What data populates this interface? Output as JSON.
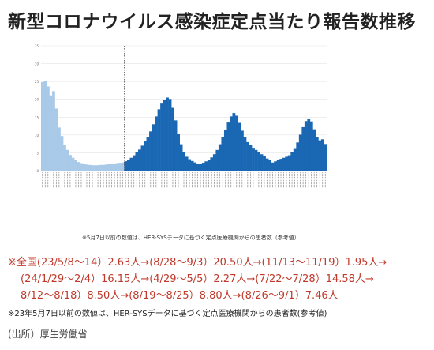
{
  "page": {
    "title": "新型コロナウイルス感染症定点当たり報告数推移",
    "chart_note": "※5月7日以前の数値は、HER-SYSデータに基づく定点医療機関からの患者数（参考値）",
    "summary_lines": [
      "※全国(23/5/8～14）2.63人→(8/28～9/3）20.50人→(11/13～11/19）1.95人→",
      "(24/1/29～2/4）16.15人→(4/29～5/5）2.27人→(7/22～7/28）14.58人→",
      "8/12～8/18）8.50人→(8/19～8/25）8.80人→(8/26～9/1）7.46人"
    ],
    "footnote": "※23年5月7日以前の数値は、HER-SYSデータに基づく定点医療機関からの患者数(参考値)",
    "source": "(出所）厚生労働省"
  },
  "colors": {
    "reference_bars": "#a9c9e8",
    "fixed_point_bars": "#1a67b3",
    "summary_text": "#c0392b",
    "divider": "#555555"
  },
  "chart_data": {
    "type": "bar",
    "title": "",
    "xlabel": "",
    "ylabel": "",
    "ylim": [
      0,
      35
    ],
    "yticks": [
      0,
      5,
      10,
      15,
      20,
      25,
      30,
      35
    ],
    "grid": true,
    "divider_after_index": 29,
    "series": [
      {
        "values": [
          24.8,
          25.2,
          23.6,
          21.1,
          22.3,
          17.4,
          12.1,
          9.7,
          7.3,
          5.8,
          4.4,
          3.6,
          2.9,
          2.4,
          2.1,
          1.9,
          1.7,
          1.6,
          1.5,
          1.5,
          1.5,
          1.6,
          1.6,
          1.7,
          1.8,
          1.9,
          2.0,
          2.1,
          2.2,
          2.3
        ]
      },
      {
        "values": [
          2.63,
          3.1,
          3.6,
          4.3,
          5.1,
          5.9,
          7.0,
          8.2,
          9.5,
          11.0,
          13.0,
          15.2,
          17.2,
          18.8,
          19.9,
          20.5,
          20.1,
          17.6,
          14.1,
          10.3,
          7.4,
          5.2,
          3.9,
          3.2,
          2.7,
          2.3,
          2.0,
          1.95,
          2.2,
          2.6,
          3.0,
          3.7,
          4.6,
          5.8,
          7.4,
          9.3,
          11.3,
          13.5,
          15.2,
          16.15,
          15.4,
          13.4,
          11.2,
          9.4,
          8.0,
          7.1,
          6.4,
          5.8,
          5.2,
          4.6,
          4.0,
          3.4,
          2.9,
          2.27,
          2.6,
          3.1,
          3.3,
          3.6,
          3.9,
          4.3,
          5.1,
          6.3,
          7.9,
          10.1,
          12.2,
          13.9,
          14.58,
          13.8,
          11.6,
          9.5,
          8.5,
          8.8,
          7.46
        ]
      }
    ]
  }
}
